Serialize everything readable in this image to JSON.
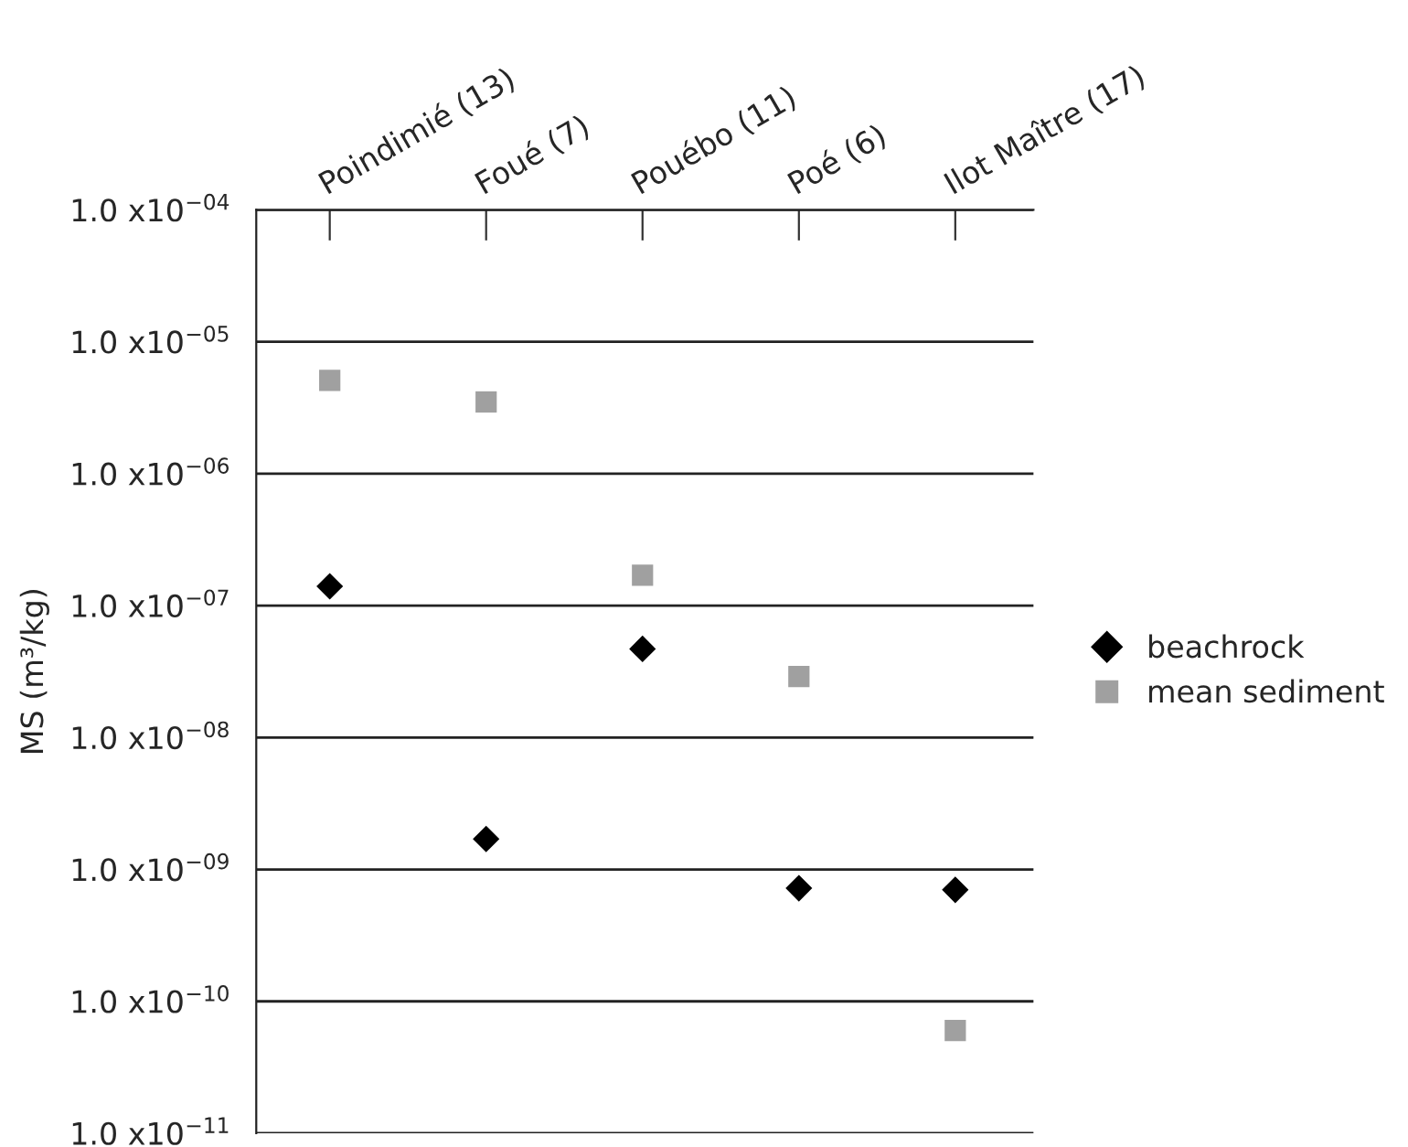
{
  "chart_data": {
    "type": "scatter",
    "ylabel": "MS (m³/kg)",
    "categories": [
      "Poindimié (13)",
      "Foué (7)",
      "Pouébo (11)",
      "Poé (6)",
      "Ilot Maître (17)"
    ],
    "series": [
      {
        "name": "beachrock",
        "color": "#000000",
        "marker": "diamond",
        "values": [
          1.4e-07,
          1.7e-09,
          4.7e-08,
          7.2e-10,
          7e-10
        ]
      },
      {
        "name": "mean sediment",
        "color": "#a0a0a0",
        "marker": "square",
        "values": [
          5.1e-06,
          3.5e-06,
          1.7e-07,
          2.9e-08,
          6e-11
        ]
      }
    ],
    "log": "y",
    "ylim": [
      1e-11,
      0.0001
    ],
    "yticks": [
      {
        "value": 1e-11,
        "label": "1.0 x10$^{−11}$"
      },
      {
        "value": 1e-10,
        "label": "1.0 x10$^{−10}$"
      },
      {
        "value": 1e-09,
        "label": "1.0 x10$^{−09}$"
      },
      {
        "value": 1e-08,
        "label": "1.0 x10$^{−08}$"
      },
      {
        "value": 1e-07,
        "label": "1.0 x10$^{−07}$"
      },
      {
        "value": 1e-06,
        "label": "1.0 x10$^{−06}$"
      },
      {
        "value": 1e-05,
        "label": "1.0 x10$^{−05}$"
      },
      {
        "value": 0.0001,
        "label": "1.0 x10$^{−04}$"
      }
    ],
    "grid": "y",
    "legend": "right"
  }
}
